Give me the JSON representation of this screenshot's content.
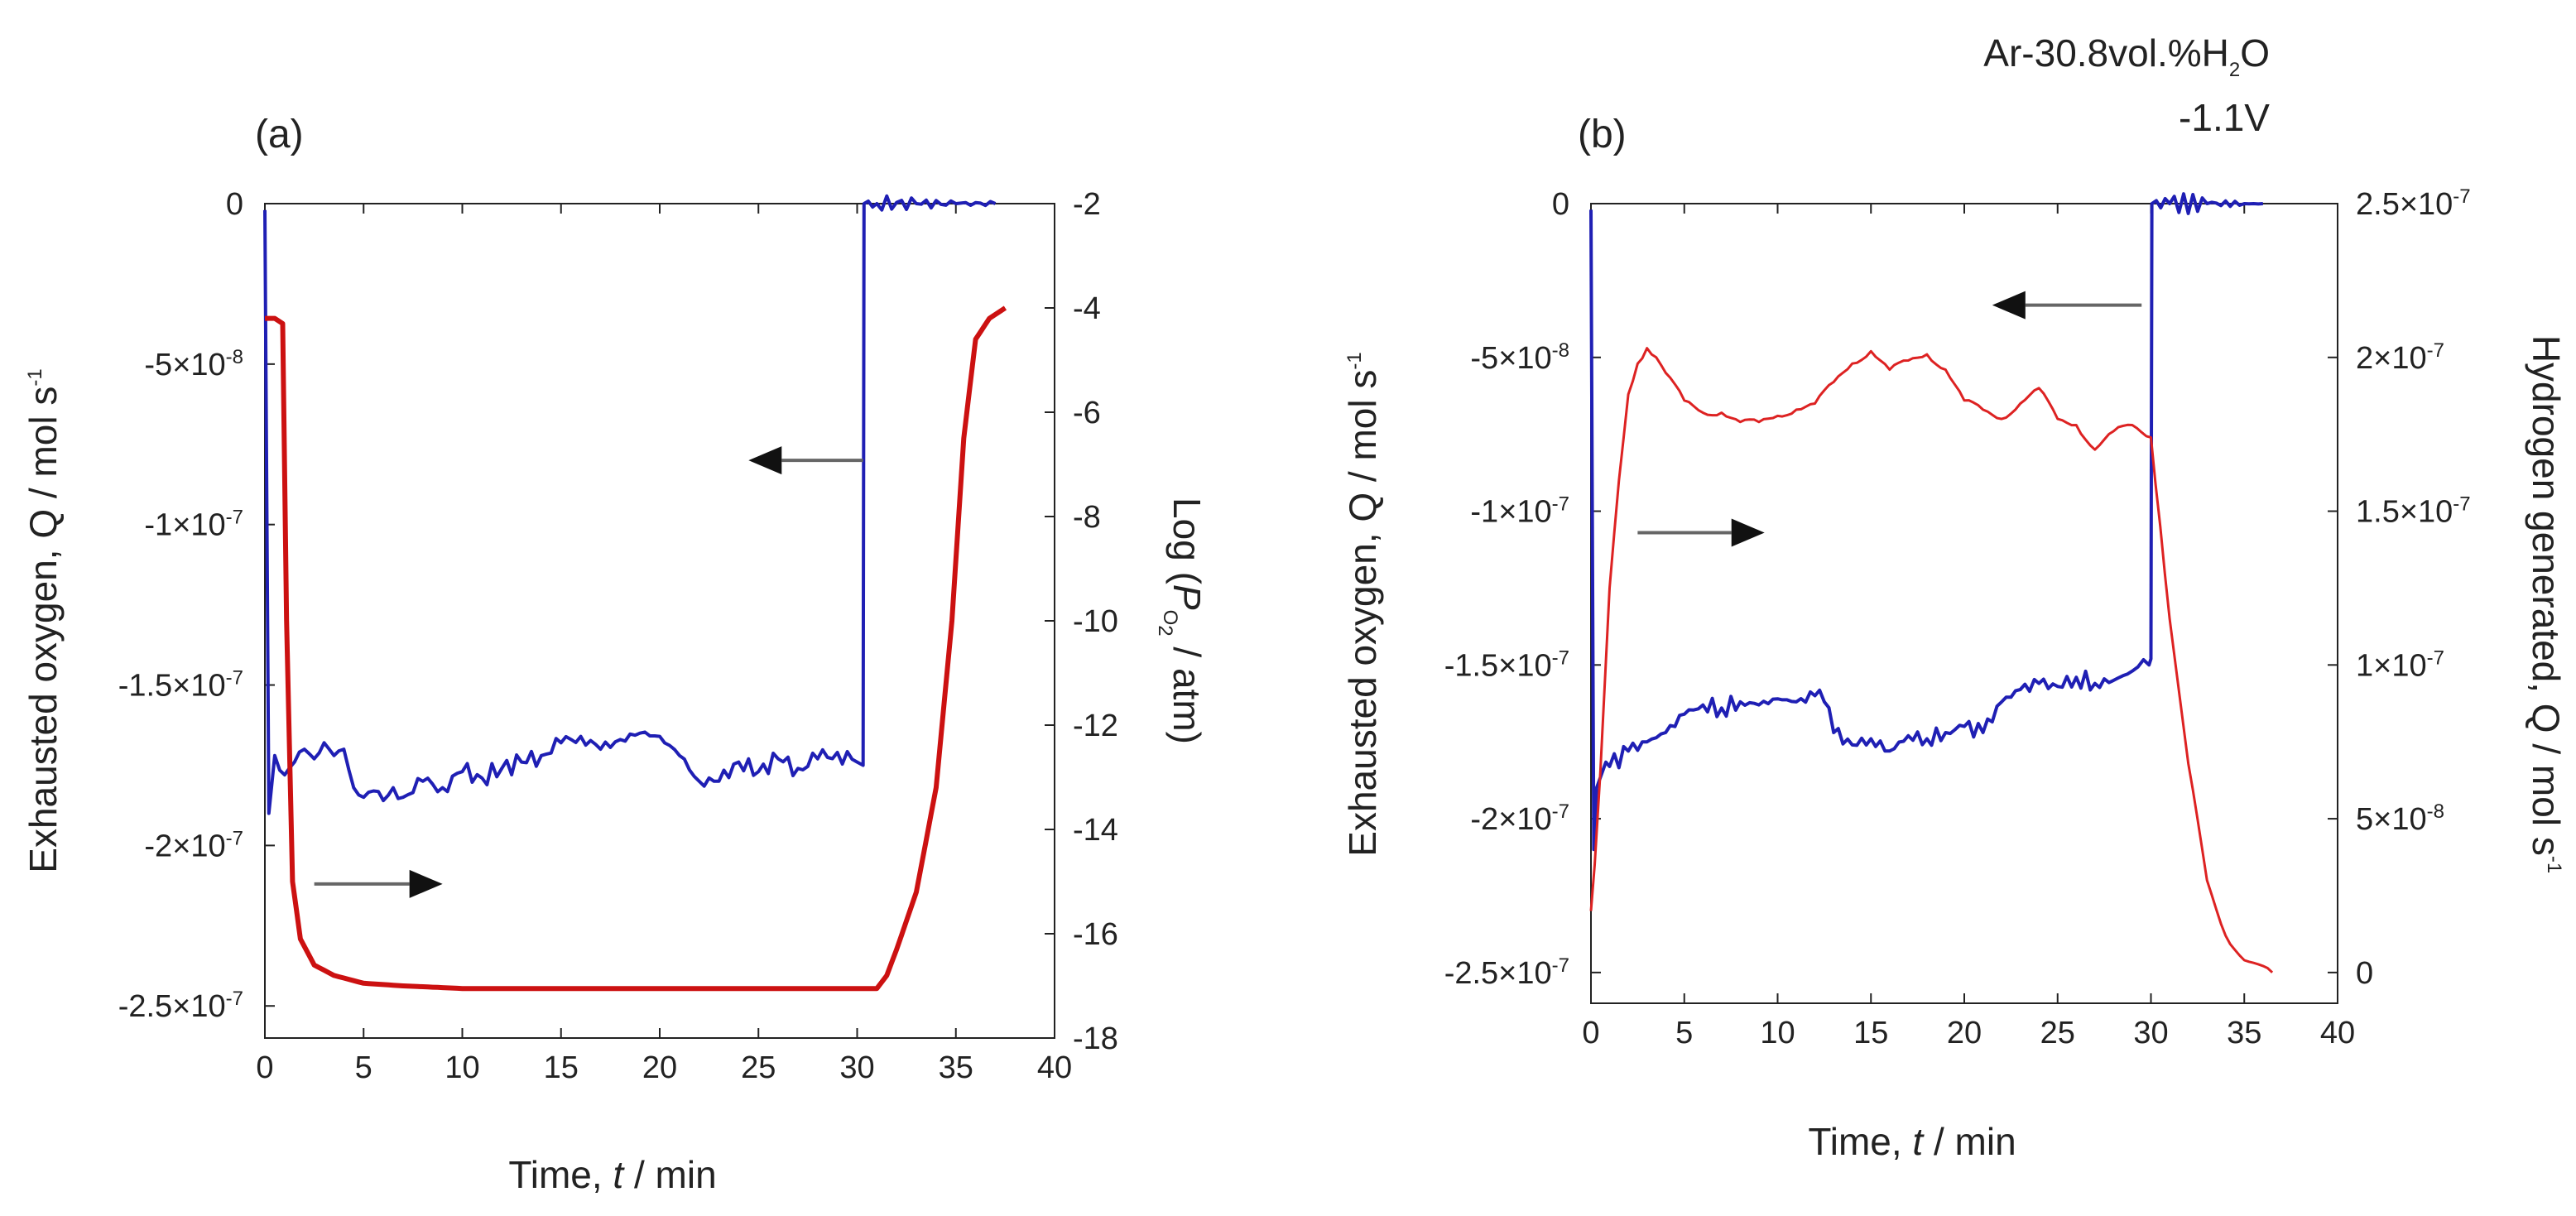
{
  "chart_data": [
    {
      "type": "line",
      "panel_label": "(a)",
      "xlabel": {
        "prefix": "Time, ",
        "var": "t",
        "suffix": " / min"
      },
      "ylabel_left": {
        "text": "Exhausted oxygen, Q / mol s",
        "sup": "-1"
      },
      "ylabel_right": {
        "prefix": "Log (",
        "var": "P",
        "sub": "O",
        "subsub": "2",
        "suffix": " / atm)"
      },
      "xlim": [
        0,
        40
      ],
      "ylim_left": [
        -2.6e-07,
        0
      ],
      "ylim_right": [
        -18,
        -2
      ],
      "x_ticks": [
        "0",
        "5",
        "10",
        "15",
        "20",
        "25",
        "30",
        "35",
        "40"
      ],
      "y_ticks_left": [
        {
          "value": 0,
          "mant": "0",
          "exp": ""
        },
        {
          "value": -5e-08,
          "mant": "-5×10",
          "exp": "-8"
        },
        {
          "value": -1e-07,
          "mant": "-1×10",
          "exp": "-7"
        },
        {
          "value": -1.5e-07,
          "mant": "-1.5×10",
          "exp": "-7"
        },
        {
          "value": -2e-07,
          "mant": "-2×10",
          "exp": "-7"
        },
        {
          "value": -2.5e-07,
          "mant": "-2.5×10",
          "exp": "-7"
        }
      ],
      "y_ticks_right": [
        "-2",
        "-4",
        "-6",
        "-8",
        "-10",
        "-12",
        "-14",
        "-16",
        "-18"
      ],
      "series": [
        {
          "axis": "left",
          "color": "#1f1fb4",
          "step": true,
          "x": [
            0,
            0.2,
            0.5,
            1,
            1.5,
            2,
            2.5,
            3,
            3.5,
            4,
            4.5,
            5,
            5.5,
            6,
            6.5,
            7,
            8,
            9,
            10,
            11,
            12,
            13,
            14,
            15,
            16,
            17,
            18,
            19,
            20,
            21,
            22,
            23,
            24,
            25,
            26,
            27,
            28,
            29,
            30,
            30.3,
            30.35,
            31,
            33,
            35,
            37
          ],
          "y": [
            -2e-09,
            -1.9e-07,
            -1.72e-07,
            -1.78e-07,
            -1.74e-07,
            -1.7e-07,
            -1.73e-07,
            -1.68e-07,
            -1.72e-07,
            -1.7e-07,
            -1.82e-07,
            -1.85e-07,
            -1.83e-07,
            -1.86e-07,
            -1.82e-07,
            -1.85e-07,
            -1.8e-07,
            -1.82e-07,
            -1.77e-07,
            -1.79e-07,
            -1.76e-07,
            -1.74e-07,
            -1.72e-07,
            -1.68e-07,
            -1.66e-07,
            -1.7e-07,
            -1.67e-07,
            -1.65e-07,
            -1.66e-07,
            -1.72e-07,
            -1.8e-07,
            -1.8e-07,
            -1.74e-07,
            -1.77e-07,
            -1.73e-07,
            -1.76e-07,
            -1.73e-07,
            -1.71e-07,
            -1.74e-07,
            -1.75e-07,
            0,
            0,
            0,
            0,
            0
          ]
        },
        {
          "axis": "right",
          "color": "#cc1111",
          "x": [
            0,
            0.5,
            0.9,
            1.1,
            1.4,
            1.8,
            2.5,
            3.5,
            5,
            7,
            10,
            15,
            20,
            25,
            30,
            31,
            31.5,
            32,
            33,
            34,
            34.8,
            35.4,
            36,
            36.7,
            37.5
          ],
          "y": [
            -4.2,
            -4.2,
            -4.3,
            -10,
            -15,
            -16.1,
            -16.6,
            -16.8,
            -16.95,
            -17.0,
            -17.05,
            -17.05,
            -17.05,
            -17.05,
            -17.05,
            -17.05,
            -16.8,
            -16.3,
            -15.2,
            -13.2,
            -10,
            -6.5,
            -4.6,
            -4.2,
            -4.0
          ]
        }
      ],
      "annotations": [
        {
          "type": "arrow",
          "direction": "left",
          "axis": "left",
          "x_from": 30.3,
          "x_to": 24.5,
          "y": -8e-08
        },
        {
          "type": "arrow",
          "direction": "right",
          "axis": "left",
          "x_from": 2.5,
          "x_to": 9,
          "y": -2.12e-07
        }
      ]
    },
    {
      "type": "line",
      "panel_label": "(b)",
      "xlabel": {
        "prefix": "Time, ",
        "var": "t",
        "suffix": " / min"
      },
      "ylabel_left": {
        "text": "Exhausted oxygen, Q / mol s",
        "sup": "-1"
      },
      "ylabel_right": {
        "text": "Hydrogen generated, Q / mol s",
        "sup": "-1"
      },
      "condition_text": [
        "Ar-30.8vol.%H",
        "2",
        "O",
        "-1.1V"
      ],
      "xlim": [
        0,
        40
      ],
      "ylim_left": [
        -2.6e-07,
        0
      ],
      "ylim_right": [
        -1e-08,
        2.5e-07
      ],
      "x_ticks": [
        "0",
        "5",
        "10",
        "15",
        "20",
        "25",
        "30",
        "35",
        "40"
      ],
      "y_ticks_left": [
        {
          "value": 0,
          "mant": "0",
          "exp": ""
        },
        {
          "value": -5e-08,
          "mant": "-5×10",
          "exp": "-8"
        },
        {
          "value": -1e-07,
          "mant": "-1×10",
          "exp": "-7"
        },
        {
          "value": -1.5e-07,
          "mant": "-1.5×10",
          "exp": "-7"
        },
        {
          "value": -2e-07,
          "mant": "-2×10",
          "exp": "-7"
        },
        {
          "value": -2.5e-07,
          "mant": "-2.5×10",
          "exp": "-7"
        }
      ],
      "y_ticks_right": [
        {
          "value": 2.5e-07,
          "mant": "2.5×10",
          "exp": "-7"
        },
        {
          "value": 2e-07,
          "mant": "2×10",
          "exp": "-7"
        },
        {
          "value": 1.5e-07,
          "mant": "1.5×10",
          "exp": "-7"
        },
        {
          "value": 1e-07,
          "mant": "1×10",
          "exp": "-7"
        },
        {
          "value": 5e-08,
          "mant": "5×10",
          "exp": "-8"
        },
        {
          "value": 0,
          "mant": "0",
          "exp": ""
        }
      ],
      "series": [
        {
          "axis": "left",
          "color": "#1f1fb4",
          "step": true,
          "x": [
            0,
            0.15,
            0.3,
            0.6,
            1,
            2,
            3,
            4,
            5,
            6,
            7,
            8,
            9,
            10,
            11,
            12,
            12.5,
            13,
            14,
            15,
            16,
            17,
            18,
            19,
            20,
            21,
            22,
            23,
            24,
            25,
            26,
            27,
            28,
            29,
            29.9,
            30,
            30.05,
            31,
            33,
            35,
            36
          ],
          "y": [
            -2e-09,
            -2.1e-07,
            -1.9e-07,
            -1.85e-07,
            -1.83e-07,
            -1.78e-07,
            -1.75e-07,
            -1.72e-07,
            -1.66e-07,
            -1.63e-07,
            -1.64e-07,
            -1.62e-07,
            -1.63e-07,
            -1.61e-07,
            -1.62e-07,
            -1.6e-07,
            -1.62e-07,
            -1.72e-07,
            -1.76e-07,
            -1.74e-07,
            -1.78e-07,
            -1.73e-07,
            -1.74e-07,
            -1.72e-07,
            -1.7e-07,
            -1.72e-07,
            -1.62e-07,
            -1.58e-07,
            -1.56e-07,
            -1.57e-07,
            -1.54e-07,
            -1.56e-07,
            -1.55e-07,
            -1.52e-07,
            -1.5e-07,
            -1.48e-07,
            0,
            0,
            0,
            0,
            0
          ]
        },
        {
          "axis": "right",
          "color": "#dd2222",
          "x": [
            0,
            0.2,
            0.5,
            1,
            1.5,
            2,
            2.5,
            3,
            3.5,
            4,
            5,
            6,
            7,
            8,
            9,
            10,
            11,
            12,
            13,
            14,
            15,
            16,
            17,
            18,
            19,
            20,
            21,
            22,
            23,
            24,
            25,
            26,
            27,
            28,
            29,
            30,
            30.5,
            31,
            32,
            33,
            34,
            35,
            36.5
          ],
          "y": [
            2e-08,
            3.5e-08,
            6.5e-08,
            1.25e-07,
            1.6e-07,
            1.88e-07,
            1.98e-07,
            2.03e-07,
            2e-07,
            1.95e-07,
            1.86e-07,
            1.82e-07,
            1.82e-07,
            1.79e-07,
            1.79e-07,
            1.81e-07,
            1.83e-07,
            1.85e-07,
            1.92e-07,
            1.98e-07,
            2.02e-07,
            1.96e-07,
            1.99e-07,
            2.01e-07,
            1.96e-07,
            1.86e-07,
            1.83e-07,
            1.8e-07,
            1.85e-07,
            1.9e-07,
            1.8e-07,
            1.78e-07,
            1.7e-07,
            1.76e-07,
            1.78e-07,
            1.74e-07,
            1.45e-07,
            1.15e-07,
            6.8e-08,
            3e-08,
            1.2e-08,
            4e-09,
            0
          ]
        }
      ],
      "annotations": [
        {
          "type": "arrow",
          "direction": "left",
          "axis": "left",
          "x_from": 29.5,
          "x_to": 21.5,
          "y": -3.3e-08
        },
        {
          "type": "arrow",
          "direction": "right",
          "axis": "left",
          "x_from": 2.5,
          "x_to": 9.3,
          "y": -1.07e-07
        }
      ]
    }
  ]
}
